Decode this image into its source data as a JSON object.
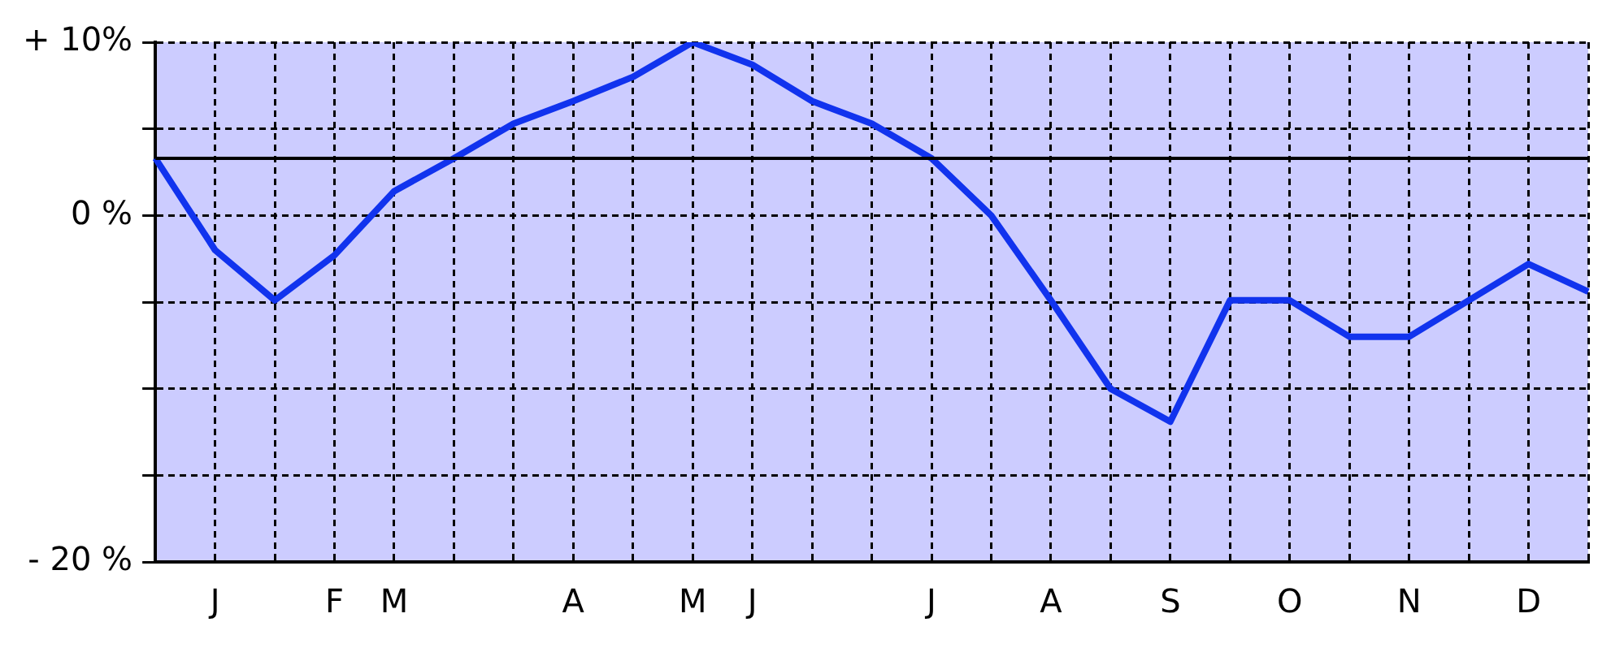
{
  "chart_data": {
    "type": "line",
    "categories": [
      null,
      "J",
      null,
      "F",
      "M",
      null,
      null,
      "A",
      null,
      "M",
      "J",
      null,
      null,
      "J",
      null,
      "A",
      null,
      "S",
      null,
      "O",
      null,
      "N",
      null,
      "D",
      null
    ],
    "series": [
      {
        "color": "#1133ee",
        "values": [
          3.3,
          -2.0,
          -4.9,
          -2.3,
          1.4,
          3.3,
          5.3,
          6.6,
          8.0,
          10,
          8.7,
          6.6,
          5.3,
          3.3,
          0,
          -4.9,
          -10,
          -11.9,
          -4.9,
          -4.9,
          -7.0,
          -7.0,
          -4.9,
          -2.8,
          -4.4
        ]
      }
    ],
    "ylim": [
      -20,
      10
    ],
    "yticks": [
      {
        "value": 10,
        "label": "+ 10%"
      },
      {
        "value": 5,
        "label": null
      },
      {
        "value": 0,
        "label": "0 %"
      },
      {
        "value": -5,
        "label": null
      },
      {
        "value": -10,
        "label": null
      },
      {
        "value": -15,
        "label": null
      },
      {
        "value": -20,
        "label": "- 20 %"
      }
    ],
    "ref_lines": [
      {
        "axis": "y",
        "value": 3.3,
        "color": "#000000",
        "line_style": "solid"
      }
    ],
    "grid": true,
    "legend": false,
    "marker": "none",
    "line_style": "solid"
  }
}
